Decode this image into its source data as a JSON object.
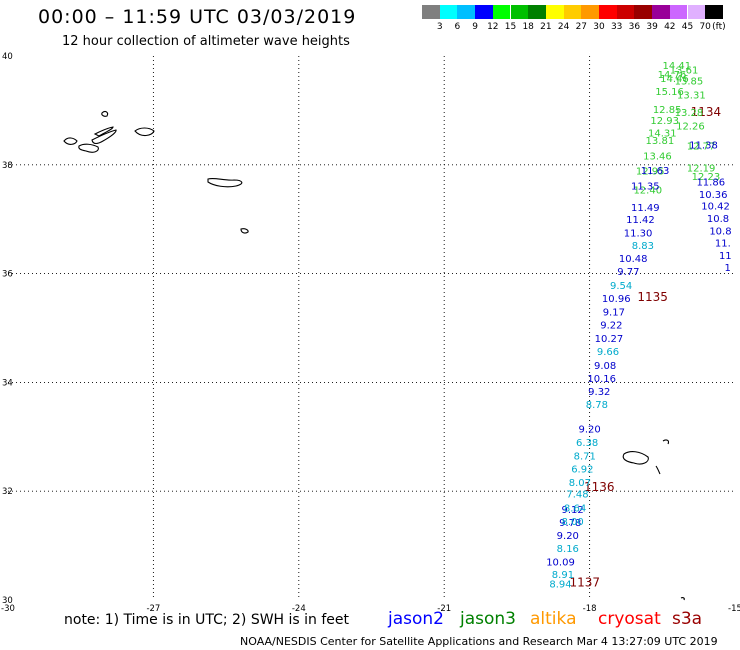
{
  "header": {
    "title": "00:00 – 11:59 UTC 03/03/2019",
    "subtitle": "12 hour collection of altimeter wave heights"
  },
  "colorbar": {
    "unit_label": "(ft)",
    "ticks": [
      "3",
      "6",
      "9",
      "12",
      "15",
      "18",
      "21",
      "24",
      "27",
      "30",
      "33",
      "36",
      "39",
      "42",
      "45",
      "70"
    ],
    "colors": [
      "#7f7f7f",
      "#00ffff",
      "#00bfff",
      "#0000ff",
      "#00ff00",
      "#00c000",
      "#008000",
      "#ffff00",
      "#ffcc00",
      "#ff9900",
      "#ff0000",
      "#cc0000",
      "#990000",
      "#990099",
      "#cc66ff",
      "#e0b0ff",
      "#000000"
    ]
  },
  "note": "note:  1) Time is in UTC;  2) SWH is in feet",
  "legend": [
    {
      "name": "jason2",
      "color": "#0000ff"
    },
    {
      "name": "jason3",
      "color": "#008000"
    },
    {
      "name": "altika",
      "color": "#ff9900"
    },
    {
      "name": "cryosat",
      "color": "#ff0000"
    },
    {
      "name": "s3a",
      "color": "#990000"
    }
  ],
  "footer": "NOAA/NESDIS Center for Satellite Applications and Research     Mar  4 13:27:09 UTC 2019",
  "chart_data": {
    "type": "scatter",
    "xlim": [
      -30,
      -15
    ],
    "ylim": [
      30,
      40
    ],
    "x_ticks": [
      "-30",
      "-27",
      "-24",
      "-21",
      "-18",
      "-15"
    ],
    "y_ticks": [
      "30",
      "32",
      "34",
      "36",
      "38",
      "40"
    ],
    "x_tick_values": [
      -30,
      -27,
      -24,
      -21,
      -18,
      -15
    ],
    "y_tick_values": [
      30,
      32,
      34,
      36,
      38,
      40
    ],
    "gridlines": "dotted",
    "track_times": [
      {
        "label": "1134",
        "lon": -15.6,
        "lat": 38.9,
        "color": "#7f0000"
      },
      {
        "label": "1135",
        "lon": -16.7,
        "lat": 35.5,
        "color": "#7f0000"
      },
      {
        "label": "1136",
        "lon": -17.8,
        "lat": 32.0,
        "color": "#7f0000"
      },
      {
        "label": "1137",
        "lon": -18.1,
        "lat": 30.25,
        "color": "#7f0000"
      }
    ],
    "series": [
      {
        "name": "track-a-green",
        "color": "#33cc33",
        "points": [
          {
            "lon": -16.2,
            "lat": 39.76,
            "v": "14.41"
          },
          {
            "lon": -16.05,
            "lat": 39.68,
            "v": "13.61"
          },
          {
            "lon": -16.3,
            "lat": 39.6,
            "v": "14.76"
          },
          {
            "lon": -16.25,
            "lat": 39.52,
            "v": "14.46"
          },
          {
            "lon": -15.95,
            "lat": 39.48,
            "v": "13.85"
          },
          {
            "lon": -16.35,
            "lat": 39.28,
            "v": "15.16"
          },
          {
            "lon": -15.9,
            "lat": 39.22,
            "v": "13.31"
          },
          {
            "lon": -16.4,
            "lat": 38.95,
            "v": "12.85"
          },
          {
            "lon": -15.95,
            "lat": 38.9,
            "v": "13.28"
          },
          {
            "lon": -16.45,
            "lat": 38.75,
            "v": "12.93"
          },
          {
            "lon": -16.5,
            "lat": 38.52,
            "v": "14.31"
          },
          {
            "lon": -16.55,
            "lat": 38.38,
            "v": "13.81"
          },
          {
            "lon": -16.6,
            "lat": 38.1,
            "v": "13.46"
          },
          {
            "lon": -16.75,
            "lat": 37.82,
            "v": "12.95"
          },
          {
            "lon": -16.8,
            "lat": 37.47,
            "v": "12.40"
          },
          {
            "lon": -15.7,
            "lat": 38.28,
            "v": "12.77"
          },
          {
            "lon": -15.7,
            "lat": 37.88,
            "v": "12.19"
          },
          {
            "lon": -15.6,
            "lat": 37.72,
            "v": "12.23"
          },
          {
            "lon": -15.92,
            "lat": 38.65,
            "v": "12.26"
          }
        ]
      },
      {
        "name": "track-a-blue",
        "color": "#0000cc",
        "points": [
          {
            "lon": -16.65,
            "lat": 37.83,
            "v": "11.63"
          },
          {
            "lon": -15.65,
            "lat": 38.3,
            "v": "11.38"
          },
          {
            "lon": -16.85,
            "lat": 37.55,
            "v": "11.35"
          },
          {
            "lon": -15.5,
            "lat": 37.62,
            "v": "11.86"
          },
          {
            "lon": -15.45,
            "lat": 37.39,
            "v": "10.36"
          },
          {
            "lon": -15.4,
            "lat": 37.18,
            "v": "10.42"
          },
          {
            "lon": -15.35,
            "lat": 36.95,
            "v": "10.8"
          },
          {
            "lon": -15.3,
            "lat": 36.72,
            "v": "10.8"
          },
          {
            "lon": -15.25,
            "lat": 36.5,
            "v": "11."
          },
          {
            "lon": -15.2,
            "lat": 36.27,
            "v": "11"
          },
          {
            "lon": -15.15,
            "lat": 36.05,
            "v": "1"
          },
          {
            "lon": -16.85,
            "lat": 37.15,
            "v": "11.49"
          },
          {
            "lon": -16.95,
            "lat": 36.93,
            "v": "11.42"
          },
          {
            "lon": -17.0,
            "lat": 36.68,
            "v": "11.30"
          },
          {
            "lon": -17.1,
            "lat": 36.21,
            "v": "10.48"
          },
          {
            "lon": -17.2,
            "lat": 35.97,
            "v": "9.77"
          },
          {
            "lon": -17.45,
            "lat": 35.48,
            "v": "10.96"
          },
          {
            "lon": -17.5,
            "lat": 35.23,
            "v": "9.17"
          },
          {
            "lon": -17.55,
            "lat": 34.99,
            "v": "9.22"
          },
          {
            "lon": -17.6,
            "lat": 34.74,
            "v": "10.27"
          },
          {
            "lon": -17.68,
            "lat": 34.25,
            "v": "9.08"
          },
          {
            "lon": -17.75,
            "lat": 34.01,
            "v": "10.16"
          },
          {
            "lon": -17.8,
            "lat": 33.77,
            "v": "9.32"
          },
          {
            "lon": -18.0,
            "lat": 33.08,
            "v": "9.20"
          },
          {
            "lon": -18.35,
            "lat": 31.6,
            "v": "9.12"
          },
          {
            "lon": -18.4,
            "lat": 31.36,
            "v": "9.78"
          },
          {
            "lon": -18.45,
            "lat": 31.12,
            "v": "9.20"
          },
          {
            "lon": -18.6,
            "lat": 30.63,
            "v": "10.09"
          }
        ]
      },
      {
        "name": "track-a-cyan",
        "color": "#00aacc",
        "points": [
          {
            "lon": -16.9,
            "lat": 36.45,
            "v": "8.83"
          },
          {
            "lon": -17.35,
            "lat": 35.72,
            "v": "9.54"
          },
          {
            "lon": -17.62,
            "lat": 34.5,
            "v": "9.66"
          },
          {
            "lon": -17.85,
            "lat": 33.53,
            "v": "8.78"
          },
          {
            "lon": -18.05,
            "lat": 32.83,
            "v": "6.38"
          },
          {
            "lon": -18.1,
            "lat": 32.58,
            "v": "8.71"
          },
          {
            "lon": -18.15,
            "lat": 32.34,
            "v": "6.92"
          },
          {
            "lon": -18.2,
            "lat": 32.1,
            "v": "8.07"
          },
          {
            "lon": -18.25,
            "lat": 31.88,
            "v": "7.48"
          },
          {
            "lon": -18.3,
            "lat": 31.63,
            "v": "8.64"
          },
          {
            "lon": -18.35,
            "lat": 31.38,
            "v": "8.00"
          },
          {
            "lon": -18.45,
            "lat": 30.88,
            "v": "8.16"
          },
          {
            "lon": -18.55,
            "lat": 30.4,
            "v": "8.91"
          },
          {
            "lon": -18.6,
            "lat": 30.23,
            "v": "8.94"
          }
        ]
      }
    ]
  }
}
